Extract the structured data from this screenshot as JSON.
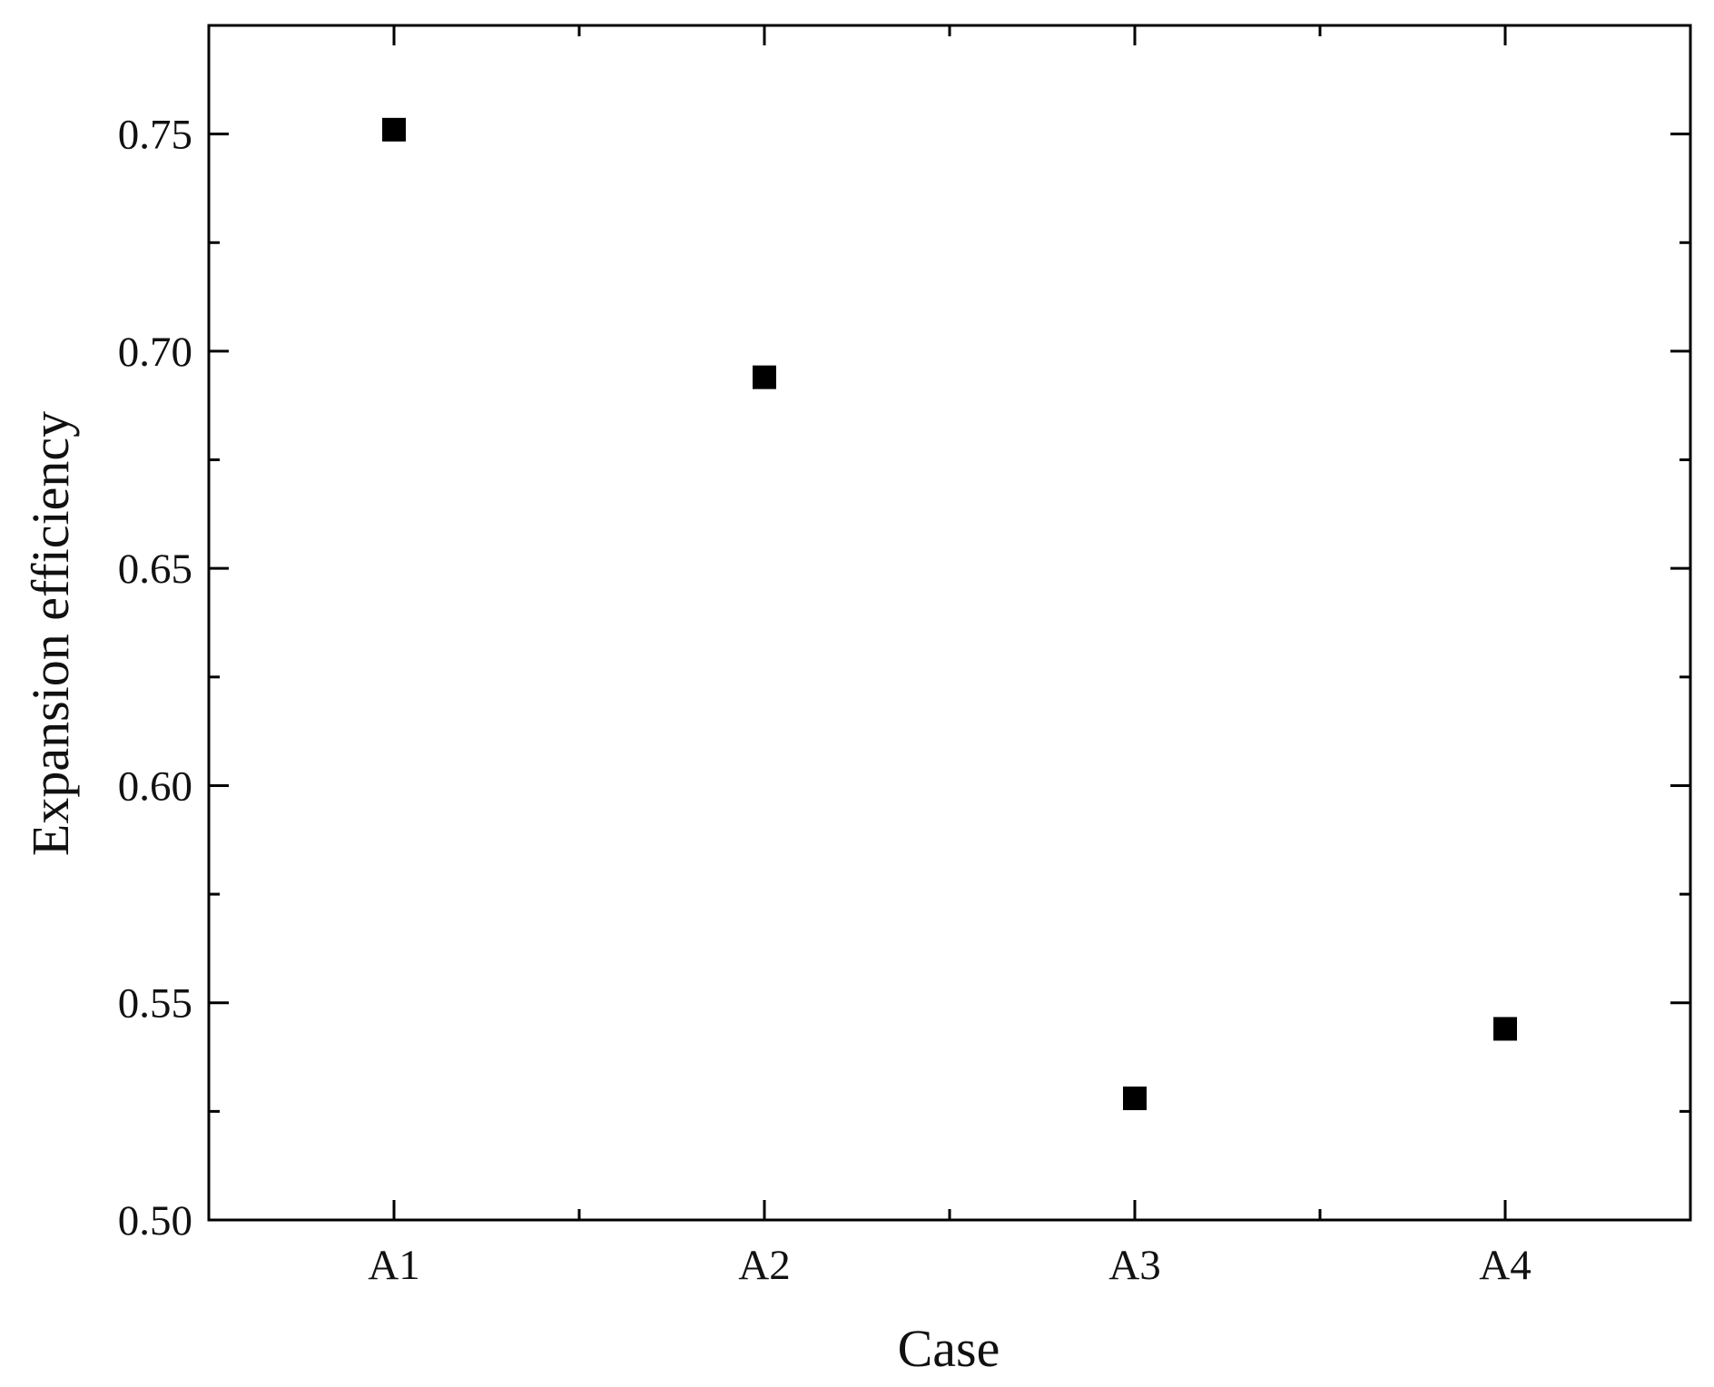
{
  "chart_data": {
    "type": "scatter",
    "title": "",
    "xlabel": "Case",
    "ylabel": "Expansion efficiency",
    "categories": [
      "A1",
      "A2",
      "A3",
      "A4"
    ],
    "values": [
      0.751,
      0.694,
      0.528,
      0.544
    ],
    "ylim": [
      0.5,
      0.775
    ],
    "yticks": [
      "0.50",
      "0.55",
      "0.60",
      "0.65",
      "0.70",
      "0.75"
    ],
    "grid": false,
    "marker": "square",
    "marker_color": "#000000",
    "axis_color": "#000000"
  }
}
